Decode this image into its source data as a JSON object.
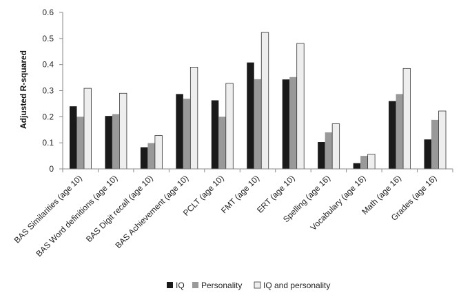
{
  "chart_data": {
    "type": "bar",
    "title": "",
    "xlabel": "",
    "ylabel": "Adjusted R-squared",
    "ylim": [
      0,
      0.6
    ],
    "yticks": [
      0,
      0.1,
      0.2,
      0.3,
      0.4,
      0.5,
      0.6
    ],
    "grid": false,
    "legend_position": "bottom",
    "categories": [
      "BAS Similarities (age 10)",
      "BAS Word definitions (age 10)",
      "BAS Digit recall (age 10)",
      "BAS Achievement (age 10)",
      "PCLT (age 10)",
      "FMT (age 10)",
      "ERT (age 10)",
      "Spelling (age 16)",
      "Vocabulary (age 16)",
      "Math (age 16)",
      "Grades (age 16)"
    ],
    "series": [
      {
        "name": "IQ",
        "color": "#1a1a1a",
        "values": [
          0.24,
          0.203,
          0.083,
          0.287,
          0.263,
          0.408,
          0.343,
          0.103,
          0.022,
          0.26,
          0.113
        ]
      },
      {
        "name": "Personality",
        "color": "#999999",
        "values": [
          0.2,
          0.21,
          0.099,
          0.269,
          0.2,
          0.344,
          0.352,
          0.14,
          0.05,
          0.287,
          0.188
        ]
      },
      {
        "name": "IQ and personality",
        "color": "#eeeeee",
        "values": [
          0.309,
          0.29,
          0.128,
          0.39,
          0.328,
          0.523,
          0.481,
          0.173,
          0.056,
          0.385,
          0.222
        ]
      }
    ]
  }
}
